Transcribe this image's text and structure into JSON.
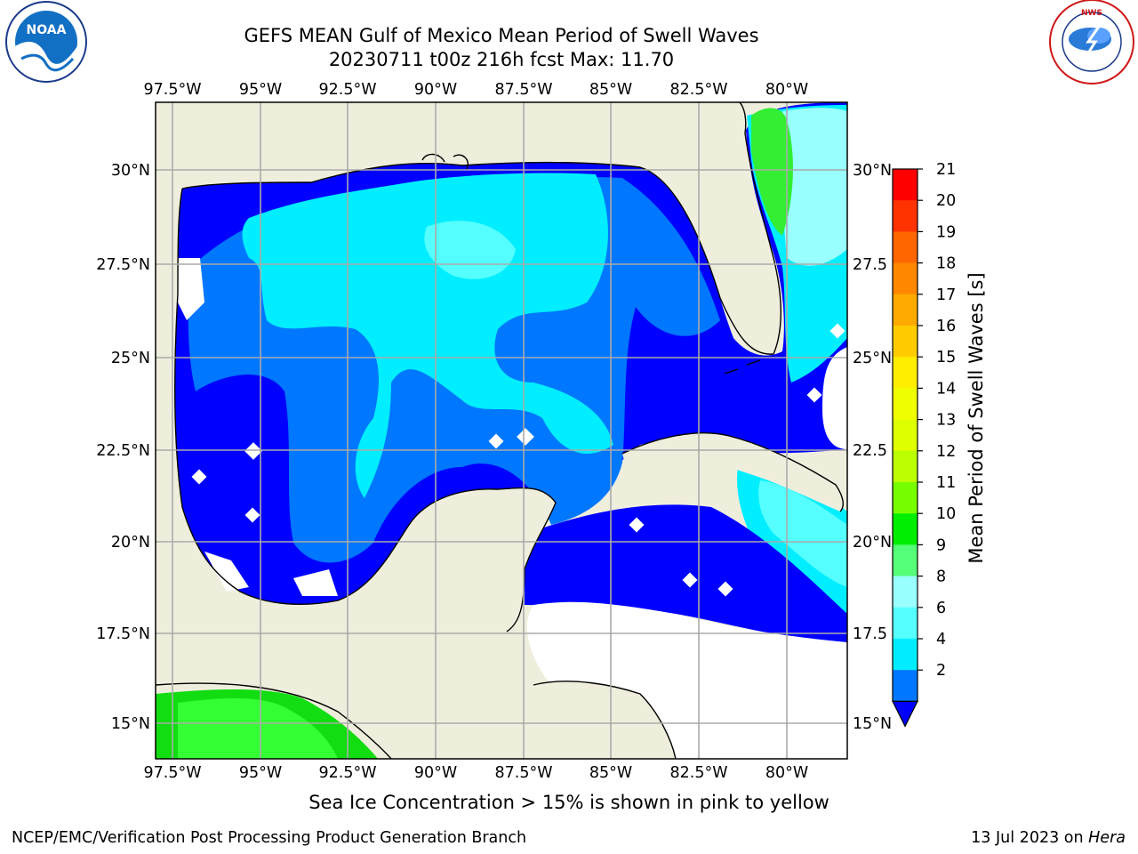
{
  "header": {
    "title_line1": "GEFS MEAN Gulf of Mexico Mean Period of Swell Waves",
    "title_line2": "20230711 t00z 216h fcst   Max: 11.70"
  },
  "logos": {
    "left": "NOAA",
    "left_ring": "NATIONAL OCEANIC AND ATMOSPHERIC ADMINISTRATION · U.S. DEPARTMENT OF COMMERCE",
    "right_ring": "NATIONAL WEATHER SERVICE"
  },
  "map": {
    "lon_labels": [
      "97.5°W",
      "95°W",
      "92.5°W",
      "90°W",
      "87.5°W",
      "85°W",
      "82.5°W",
      "80°W"
    ],
    "lat_labels_left": [
      "30°N",
      "27.5°N",
      "25°N",
      "22.5°N",
      "20°N",
      "17.5°N",
      "15°N"
    ],
    "lat_labels_right": [
      "30°N",
      "27.5",
      "25°N",
      "22.5",
      "20°N",
      "17.5",
      "15°N"
    ]
  },
  "colorbar": {
    "label": "Mean Period of Swell Waves [s]",
    "ticks": [
      "21",
      "20",
      "19",
      "18",
      "17",
      "16",
      "15",
      "14",
      "13",
      "12",
      "11",
      "10",
      "9",
      "8",
      "6",
      "4",
      "2"
    ],
    "colors": [
      "#ff0000",
      "#ff3300",
      "#ff6600",
      "#ff8800",
      "#ffaa00",
      "#ffcc00",
      "#ffee00",
      "#f0ff00",
      "#ddff00",
      "#bbff00",
      "#77ff00",
      "#00ee00",
      "#55ff77",
      "#99ffff",
      "#55ffff",
      "#00eeff",
      "#0077ff"
    ],
    "underflow_color": "#0000ff"
  },
  "footer": {
    "subtitle": "Sea Ice Concentration > 15% is shown in pink to yellow",
    "left": "NCEP/EMC/Verification Post Processing Product Generation Branch",
    "right_date": "13 Jul 2023 on ",
    "right_host": "Hera"
  }
}
